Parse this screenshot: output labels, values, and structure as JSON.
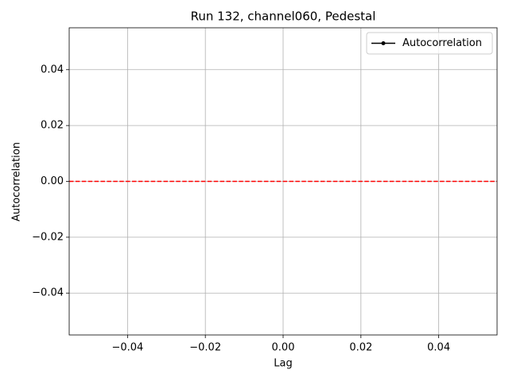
{
  "chart_data": {
    "type": "line",
    "title": "Run 132, channel060, Pedestal",
    "x_label": "Lag",
    "y_label": "Autocorrelation",
    "x": [],
    "series": [
      {
        "name": "Autocorrelation",
        "color": "#000000",
        "values": []
      }
    ],
    "hlines": [
      {
        "y": 0,
        "color": "#ff0000"
      }
    ],
    "xlim": [
      -0.055,
      0.055
    ],
    "xticks": [
      {
        "value": -0.04,
        "label": "−0.04"
      },
      {
        "value": -0.02,
        "label": "−0.02"
      },
      {
        "value": 0,
        "label": "0.00"
      },
      0.02,
      0.04
    ],
    "ylim": [
      -0.055,
      0.055
    ],
    "yticks": [
      {
        "value": -0.04,
        "label": "−0.04"
      },
      {
        "value": -0.02,
        "label": "−0.02"
      },
      {
        "value": 0,
        "label": "0.00"
      },
      0.02,
      0.04
    ],
    "grid": true,
    "legend": "upper right"
  }
}
